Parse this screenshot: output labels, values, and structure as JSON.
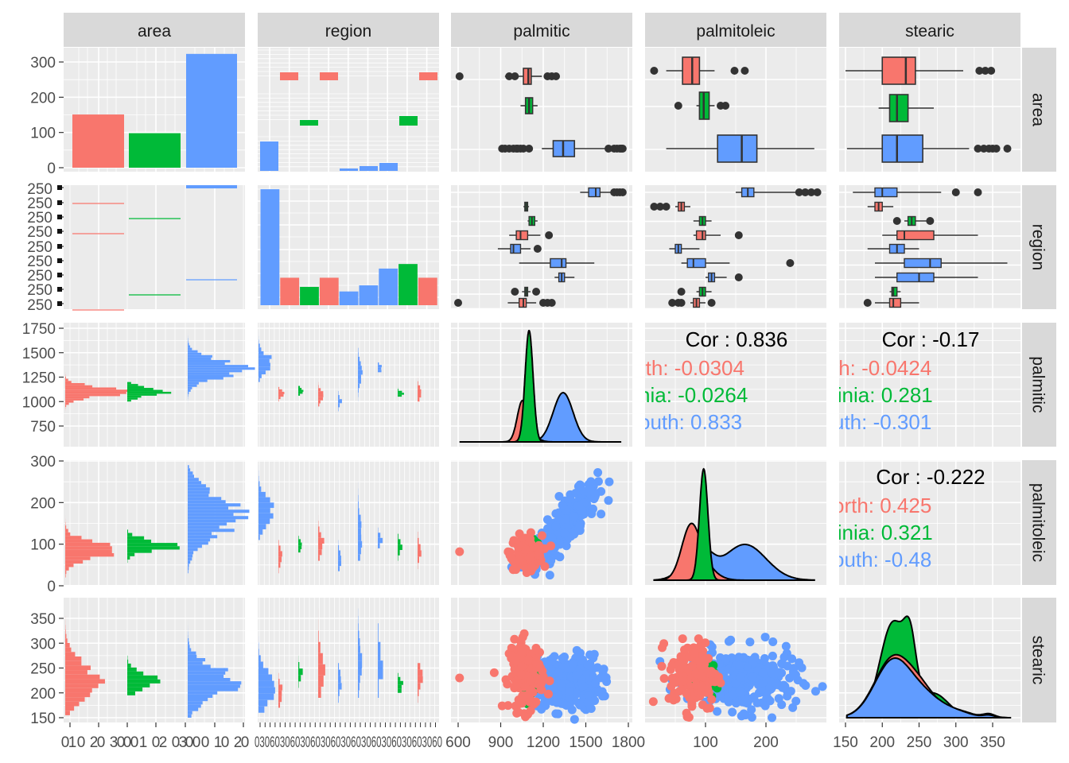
{
  "chart_data": {
    "type": "pairs",
    "variables": [
      "area",
      "region",
      "palmitic",
      "palmitoleic",
      "stearic"
    ],
    "groups": [
      "North",
      "Sardinia",
      "South"
    ],
    "colors": {
      "North": "#F8766D",
      "Sardinia": "#00BA38",
      "South": "#619CFF"
    },
    "panel_background": "#EBEBEB",
    "strip_background": "#D9D9D9",
    "grid": true,
    "area_counts": {
      "North": 151,
      "Sardinia": 98,
      "South": 323
    },
    "region_counts": [
      {
        "group": "South",
        "count": 76
      },
      {
        "group": "North",
        "count": 18
      },
      {
        "group": "Sardinia",
        "count": 12
      },
      {
        "group": "North",
        "count": 18
      },
      {
        "group": "South",
        "count": 9
      },
      {
        "group": "South",
        "count": 13
      },
      {
        "group": "South",
        "count": 24
      },
      {
        "group": "Sardinia",
        "count": 27
      },
      {
        "group": "North",
        "count": 18
      }
    ],
    "palmitic": {
      "North": {
        "q1": 1060,
        "med": 1095,
        "q3": 1115,
        "wlo": 930,
        "whi": 1190,
        "out": [
          610,
          960,
          1000,
          1230,
          1260,
          1290
        ]
      },
      "Sardinia": {
        "q1": 1075,
        "med": 1100,
        "q3": 1125,
        "wlo": 1040,
        "whi": 1160,
        "out": []
      },
      "South": {
        "q1": 1270,
        "med": 1340,
        "q3": 1420,
        "wlo": 1190,
        "whi": 1650,
        "out": [
          910,
          930,
          960,
          990,
          1010,
          1020,
          1040,
          1060,
          1100,
          1660,
          1700,
          1720,
          1740,
          1750,
          1760
        ]
      }
    },
    "palmitoleic": {
      "North": {
        "q1": 62,
        "med": 78,
        "q3": 90,
        "wlo": 35,
        "whi": 115,
        "out": [
          15,
          148,
          165
        ]
      },
      "Sardinia": {
        "q1": 90,
        "med": 97,
        "q3": 106,
        "wlo": 85,
        "whi": 115,
        "out": [
          55,
          125,
          133
        ]
      },
      "South": {
        "q1": 120,
        "med": 160,
        "q3": 185,
        "wlo": 35,
        "whi": 280,
        "out": []
      }
    },
    "stearic": {
      "North": {
        "q1": 200,
        "med": 232,
        "q3": 245,
        "wlo": 150,
        "whi": 310,
        "out": [
          332,
          340,
          348
        ]
      },
      "Sardinia": {
        "q1": 210,
        "med": 220,
        "q3": 235,
        "wlo": 195,
        "whi": 270,
        "out": []
      },
      "South": {
        "q1": 200,
        "med": 220,
        "q3": 255,
        "wlo": 152,
        "whi": 318,
        "out": [
          330,
          338,
          345,
          350,
          355,
          370
        ]
      }
    },
    "correlations": [
      {
        "pair": "palmitic-palmitoleic",
        "overall_label": "Cor : 0.836",
        "groups": [
          {
            "group": "North",
            "label": "rth: -0.0304"
          },
          {
            "group": "Sardinia",
            "label": "nia: -0.0264"
          },
          {
            "group": "South",
            "label": "outh: 0.833"
          }
        ]
      },
      {
        "pair": "palmitic-stearic",
        "overall_label": "Cor : -0.17",
        "groups": [
          {
            "group": "North",
            "label": "th: -0.0424"
          },
          {
            "group": "Sardinia",
            "label": "linia: 0.281"
          },
          {
            "group": "South",
            "label": "uth: -0.301"
          }
        ]
      },
      {
        "pair": "palmitoleic-stearic",
        "overall_label": "Cor : -0.222",
        "groups": [
          {
            "group": "North",
            "label": "orth: 0.425"
          },
          {
            "group": "Sardinia",
            "label": "linia: 0.321"
          },
          {
            "group": "South",
            "label": "outh: -0.48"
          }
        ]
      }
    ],
    "axes": {
      "palmitic_ticks": [
        "600",
        "900",
        "1200",
        "1500",
        "1800"
      ],
      "palmitoleic_ticks": [
        "100",
        "200"
      ],
      "stearic_ticks": [
        "150",
        "200",
        "250",
        "300",
        "350"
      ],
      "area_count_ticks": [
        "0",
        "100",
        "200",
        "300"
      ],
      "palmitic_row_ticks": [
        "750",
        "1000",
        "1250",
        "1500",
        "1750"
      ],
      "palmitoleic_row_ticks": [
        "0",
        "100",
        "200",
        "300"
      ],
      "stearic_row_ticks": [
        "150",
        "200",
        "250",
        "300",
        "350"
      ],
      "area_col_bottom_labels": [
        "0",
        "1",
        "0",
        "2",
        "0",
        "3",
        "0",
        "0",
        "0",
        "1",
        "0",
        "2",
        "0",
        "3",
        "0",
        "0",
        "0",
        "1",
        "0",
        "2",
        "0",
        "3",
        "0"
      ],
      "region_col_bottom_text": "0306030603060306030603060306030603060"
    }
  }
}
